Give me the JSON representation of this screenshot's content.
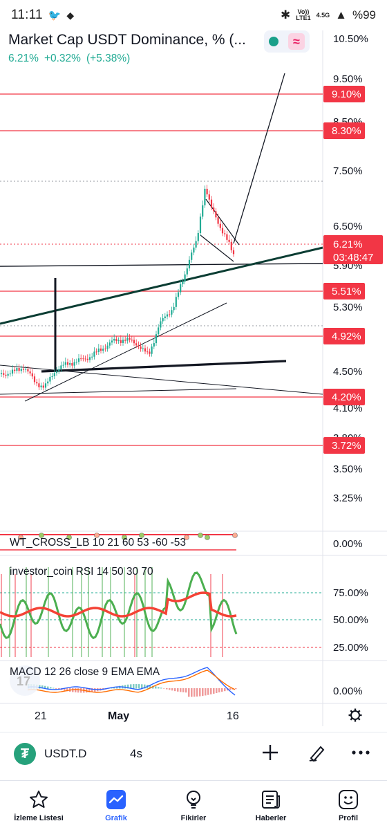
{
  "status_bar": {
    "time": "11:11",
    "network_top": "Vo))",
    "network_bottom": "LTE1",
    "signal": "4.5G",
    "battery": "%99"
  },
  "header": {
    "title": "Market Cap USDT Dominance, % (...",
    "last_value": "6.21%",
    "change": "+0.32%",
    "change_pct": "(+5.38%)",
    "positive_color": "#22ab94"
  },
  "price_axis": {
    "ticks": [
      "10.50%",
      "9.50%",
      "8.50%",
      "7.50%",
      "6.50%",
      "5.90%",
      "5.30%",
      "4.50%",
      "4.10%",
      "3.80%",
      "3.50%",
      "3.25%"
    ],
    "current_price": "6.21%",
    "countdown": "03:48:47",
    "level_labels": [
      "9.10%",
      "8.30%",
      "5.51%",
      "4.92%",
      "4.20%",
      "3.72%"
    ],
    "level_color": "#f23645"
  },
  "time_axis": {
    "labels": [
      "21",
      "May",
      "16"
    ]
  },
  "indicators": {
    "wt_cross": {
      "label": "WT_CROSS_LB 10 21 60 53 -60 -53",
      "axis": [
        "0.00%"
      ]
    },
    "rsi": {
      "label": "investor_coin RSI 14 50 30 70",
      "axis": [
        "75.00%",
        "50.00%",
        "25.00%"
      ]
    },
    "macd": {
      "label": "MACD 12 26 close 9 EMA EMA",
      "axis": [
        "0.00%"
      ]
    }
  },
  "chart_data": {
    "type": "candlestick",
    "title": "Market Cap USDT Dominance, %",
    "x": [
      "21",
      "May",
      "16"
    ],
    "last_close": 6.21,
    "horizontal_levels": [
      9.1,
      8.3,
      5.51,
      4.92,
      4.2,
      3.72
    ],
    "ylim": [
      3.0,
      10.6
    ]
  },
  "symbol_bar": {
    "symbol": "USDT.D",
    "interval": "4s"
  },
  "nav": {
    "items": [
      {
        "label": "İzleme Listesi",
        "icon": "star-icon"
      },
      {
        "label": "Grafik",
        "icon": "chart-icon"
      },
      {
        "label": "Fikirler",
        "icon": "lightbulb-icon"
      },
      {
        "label": "Haberler",
        "icon": "news-icon"
      },
      {
        "label": "Profil",
        "icon": "smiley-icon"
      }
    ],
    "active_color": "#2962ff"
  }
}
